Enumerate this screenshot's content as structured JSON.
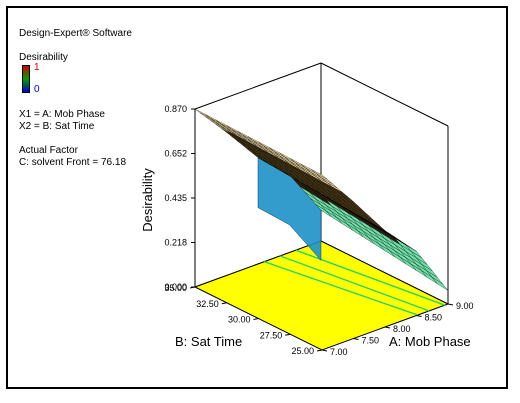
{
  "software_title": "Design-Expert® Software",
  "response_name": "Desirability",
  "colorbar": {
    "max_label": "1",
    "min_label": "0",
    "high_color": "#d00000",
    "mid_color": "#00a000",
    "low_color": "#0000cc"
  },
  "factor_x1": "X1 = A: Mob Phase",
  "factor_x2": "X2 = B: Sat Time",
  "actual_factor_title": "Actual Factor",
  "actual_factor_value": "C: solvent Front = 76.18",
  "colors": {
    "surface_top": "#e8d39b",
    "surface_mid": "#2a1f0a",
    "surface_low": "#6fe0a8",
    "surface_side": "#1e90c8",
    "contour_floor": "#ffff00",
    "contour_lines": "#27d36a"
  },
  "chart_data": {
    "type": "surface3d",
    "xlabel": "A: Mob Phase",
    "ylabel": "B: Sat Time",
    "zlabel": "Desirability",
    "x_ticks": [
      "7.00",
      "7.50",
      "8.00",
      "8.50",
      "9.00"
    ],
    "y_ticks": [
      "25.00",
      "27.50",
      "30.00",
      "32.50",
      "35.00"
    ],
    "z_ticks": [
      "0.000",
      "0.218",
      "0.435",
      "0.652",
      "0.870"
    ],
    "xlim": [
      7.0,
      9.0
    ],
    "ylim": [
      25.0,
      35.0
    ],
    "zlim": [
      0.0,
      0.87
    ],
    "surface_profile": {
      "x": [
        7.0,
        7.5,
        8.0,
        8.5,
        9.0
      ],
      "desirability_at_sat_time_35": [
        0.87,
        0.7,
        0.52,
        0.38,
        0.15
      ]
    },
    "grid": false
  }
}
